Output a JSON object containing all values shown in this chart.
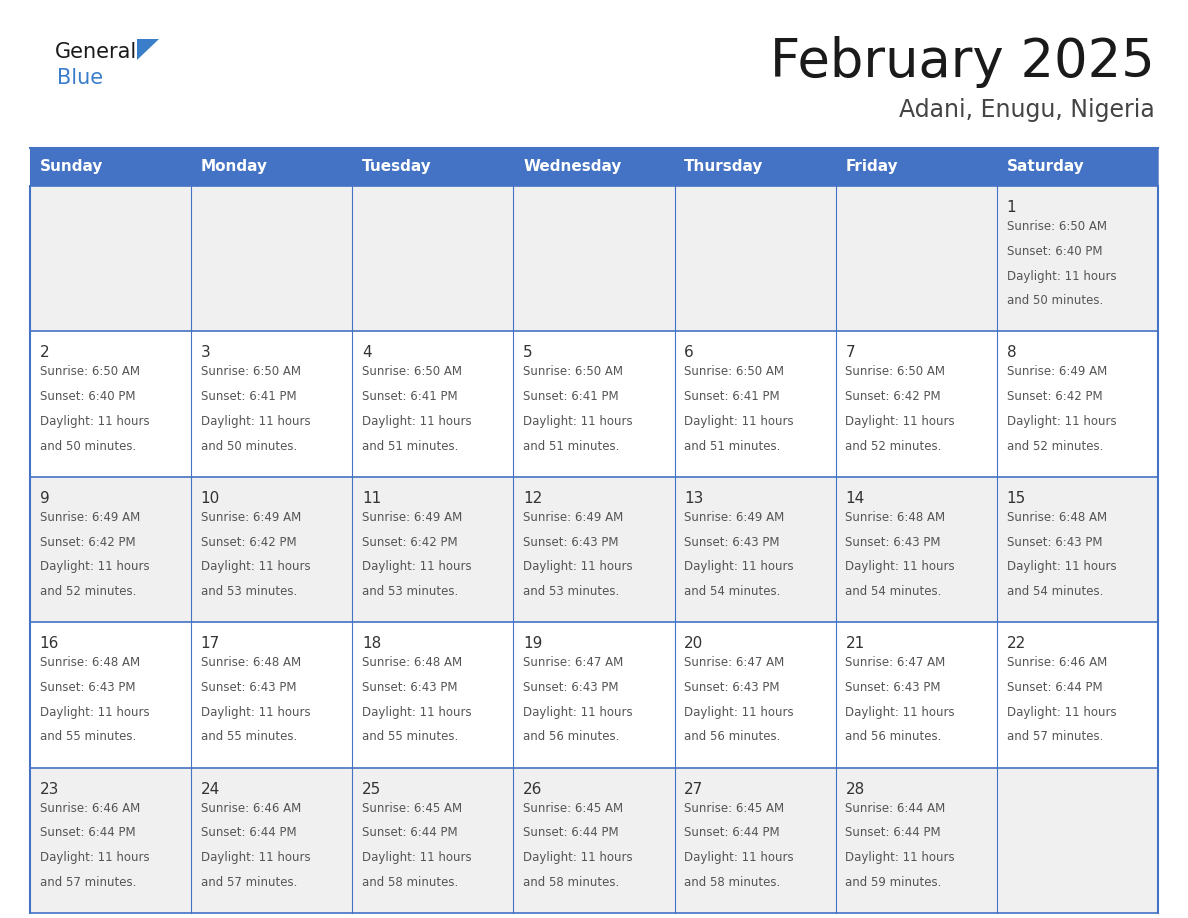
{
  "title": "February 2025",
  "subtitle": "Adani, Enugu, Nigeria",
  "header_color": "#4472C4",
  "header_text_color": "#FFFFFF",
  "days_of_week": [
    "Sunday",
    "Monday",
    "Tuesday",
    "Wednesday",
    "Thursday",
    "Friday",
    "Saturday"
  ],
  "background_color": "#FFFFFF",
  "cell_bg_alt": "#F0F0F0",
  "cell_bg_normal": "#FFFFFF",
  "border_color": "#4472C4",
  "border_color_light": "#8AABDA",
  "title_color": "#1a1a1a",
  "subtitle_color": "#444444",
  "day_number_color": "#333333",
  "cell_text_color": "#555555",
  "logo_general_color": "#1a1a1a",
  "logo_blue_color": "#3A7DC9",
  "logo_triangle_color": "#3A7DC9",
  "calendar_data": [
    [
      null,
      null,
      null,
      null,
      null,
      null,
      {
        "day": 1,
        "sunrise": "6:50 AM",
        "sunset": "6:40 PM",
        "daylight": "11 hours and 50 minutes."
      }
    ],
    [
      {
        "day": 2,
        "sunrise": "6:50 AM",
        "sunset": "6:40 PM",
        "daylight": "11 hours and 50 minutes."
      },
      {
        "day": 3,
        "sunrise": "6:50 AM",
        "sunset": "6:41 PM",
        "daylight": "11 hours and 50 minutes."
      },
      {
        "day": 4,
        "sunrise": "6:50 AM",
        "sunset": "6:41 PM",
        "daylight": "11 hours and 51 minutes."
      },
      {
        "day": 5,
        "sunrise": "6:50 AM",
        "sunset": "6:41 PM",
        "daylight": "11 hours and 51 minutes."
      },
      {
        "day": 6,
        "sunrise": "6:50 AM",
        "sunset": "6:41 PM",
        "daylight": "11 hours and 51 minutes."
      },
      {
        "day": 7,
        "sunrise": "6:50 AM",
        "sunset": "6:42 PM",
        "daylight": "11 hours and 52 minutes."
      },
      {
        "day": 8,
        "sunrise": "6:49 AM",
        "sunset": "6:42 PM",
        "daylight": "11 hours and 52 minutes."
      }
    ],
    [
      {
        "day": 9,
        "sunrise": "6:49 AM",
        "sunset": "6:42 PM",
        "daylight": "11 hours and 52 minutes."
      },
      {
        "day": 10,
        "sunrise": "6:49 AM",
        "sunset": "6:42 PM",
        "daylight": "11 hours and 53 minutes."
      },
      {
        "day": 11,
        "sunrise": "6:49 AM",
        "sunset": "6:42 PM",
        "daylight": "11 hours and 53 minutes."
      },
      {
        "day": 12,
        "sunrise": "6:49 AM",
        "sunset": "6:43 PM",
        "daylight": "11 hours and 53 minutes."
      },
      {
        "day": 13,
        "sunrise": "6:49 AM",
        "sunset": "6:43 PM",
        "daylight": "11 hours and 54 minutes."
      },
      {
        "day": 14,
        "sunrise": "6:48 AM",
        "sunset": "6:43 PM",
        "daylight": "11 hours and 54 minutes."
      },
      {
        "day": 15,
        "sunrise": "6:48 AM",
        "sunset": "6:43 PM",
        "daylight": "11 hours and 54 minutes."
      }
    ],
    [
      {
        "day": 16,
        "sunrise": "6:48 AM",
        "sunset": "6:43 PM",
        "daylight": "11 hours and 55 minutes."
      },
      {
        "day": 17,
        "sunrise": "6:48 AM",
        "sunset": "6:43 PM",
        "daylight": "11 hours and 55 minutes."
      },
      {
        "day": 18,
        "sunrise": "6:48 AM",
        "sunset": "6:43 PM",
        "daylight": "11 hours and 55 minutes."
      },
      {
        "day": 19,
        "sunrise": "6:47 AM",
        "sunset": "6:43 PM",
        "daylight": "11 hours and 56 minutes."
      },
      {
        "day": 20,
        "sunrise": "6:47 AM",
        "sunset": "6:43 PM",
        "daylight": "11 hours and 56 minutes."
      },
      {
        "day": 21,
        "sunrise": "6:47 AM",
        "sunset": "6:43 PM",
        "daylight": "11 hours and 56 minutes."
      },
      {
        "day": 22,
        "sunrise": "6:46 AM",
        "sunset": "6:44 PM",
        "daylight": "11 hours and 57 minutes."
      }
    ],
    [
      {
        "day": 23,
        "sunrise": "6:46 AM",
        "sunset": "6:44 PM",
        "daylight": "11 hours and 57 minutes."
      },
      {
        "day": 24,
        "sunrise": "6:46 AM",
        "sunset": "6:44 PM",
        "daylight": "11 hours and 57 minutes."
      },
      {
        "day": 25,
        "sunrise": "6:45 AM",
        "sunset": "6:44 PM",
        "daylight": "11 hours and 58 minutes."
      },
      {
        "day": 26,
        "sunrise": "6:45 AM",
        "sunset": "6:44 PM",
        "daylight": "11 hours and 58 minutes."
      },
      {
        "day": 27,
        "sunrise": "6:45 AM",
        "sunset": "6:44 PM",
        "daylight": "11 hours and 58 minutes."
      },
      {
        "day": 28,
        "sunrise": "6:44 AM",
        "sunset": "6:44 PM",
        "daylight": "11 hours and 59 minutes."
      },
      null
    ]
  ]
}
